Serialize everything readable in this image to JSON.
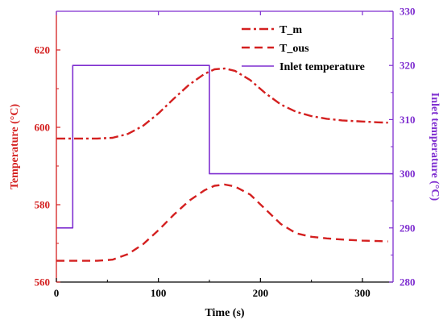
{
  "chart_data": {
    "type": "line",
    "xlabel": "Time (s)",
    "ylabel_left": "Temperature (°C)",
    "ylabel_right": "Inlet temperature (°C)",
    "xlim": [
      0,
      330
    ],
    "ylim_left": [
      560,
      630
    ],
    "ylim_right": [
      280,
      330
    ],
    "xticks": [
      0,
      100,
      200,
      300
    ],
    "yticks_left": [
      560,
      580,
      600,
      620
    ],
    "yticks_right": [
      280,
      290,
      300,
      310,
      320,
      330
    ],
    "legend_position": "top-right",
    "colors": {
      "left_axis": "#d42020",
      "right_axis": "#7f2fd0",
      "frame": "#000000"
    },
    "series": [
      {
        "name": "T_m",
        "axis": "left",
        "style": "dashdot",
        "color": "#d42020",
        "x": [
          0,
          20,
          40,
          55,
          70,
          85,
          100,
          115,
          130,
          145,
          155,
          165,
          175,
          190,
          205,
          220,
          235,
          250,
          265,
          280,
          300,
          315,
          325
        ],
        "y": [
          597.1,
          597.1,
          597.1,
          597.3,
          598.3,
          600.4,
          603.6,
          607.4,
          611.0,
          613.8,
          615.0,
          615.2,
          614.6,
          612.2,
          608.8,
          605.9,
          604.0,
          602.9,
          602.2,
          601.8,
          601.5,
          601.3,
          601.2
        ]
      },
      {
        "name": "T_ous",
        "axis": "left",
        "style": "dashed",
        "color": "#d42020",
        "x": [
          0,
          20,
          40,
          55,
          70,
          85,
          100,
          115,
          130,
          145,
          155,
          165,
          175,
          190,
          205,
          220,
          235,
          250,
          265,
          280,
          300,
          315,
          325
        ],
        "y": [
          565.5,
          565.5,
          565.5,
          565.8,
          567.2,
          569.8,
          573.4,
          577.4,
          581.0,
          583.7,
          584.9,
          585.2,
          584.7,
          582.6,
          578.8,
          575.0,
          572.6,
          571.7,
          571.3,
          571.0,
          570.7,
          570.6,
          570.5
        ]
      },
      {
        "name": "Inlet temperature",
        "axis": "right",
        "style": "solid",
        "color": "#7f2fd0",
        "x": [
          0,
          16,
          16,
          150,
          150,
          330
        ],
        "y": [
          290,
          290,
          320,
          320,
          300,
          300
        ]
      }
    ]
  }
}
